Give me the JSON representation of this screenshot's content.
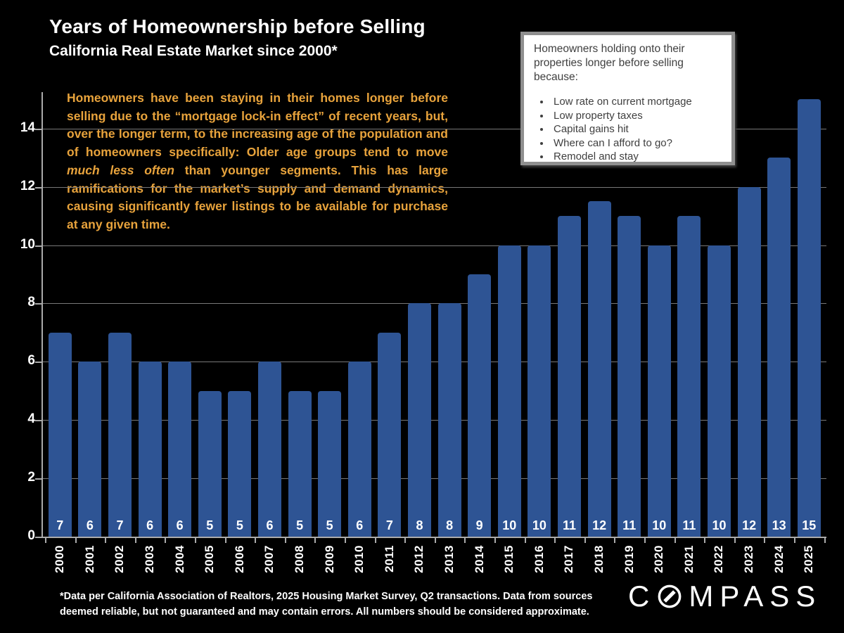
{
  "title": "Years of Homeownership before Selling",
  "subtitle": "California Real Estate Market since 2000*",
  "commentary": {
    "part1": "Homeowners have been staying in their homes longer before selling due to the “mortgage lock-in effect” of recent years, but, over the longer term, to the increasing age of the population and of homeowners specifically:  Older age groups tend to move ",
    "italic": "much less often",
    "part2": " than younger segments.  This has large ramifications for the market’s supply and demand dynamics, causing significantly fewer listings to be available for purchase at any given time."
  },
  "callout_box": {
    "heading": "Homeowners holding onto their properties longer before selling because:",
    "bullets": [
      "Low rate on current mortgage",
      "Low property taxes",
      "Capital gains hit",
      "Where can I afford to go?",
      "Remodel and stay"
    ]
  },
  "chart_data": {
    "type": "bar",
    "title": "Years of Homeownership before Selling",
    "xlabel": "",
    "ylabel": "",
    "categories": [
      "2000",
      "2001",
      "2002",
      "2003",
      "2004",
      "2005",
      "2006",
      "2007",
      "2008",
      "2009",
      "2010",
      "2011",
      "2012",
      "2013",
      "2014",
      "2015",
      "2016",
      "2017",
      "2018",
      "2019",
      "2020",
      "2021",
      "2022",
      "2023",
      "2024",
      "2025"
    ],
    "values": [
      7,
      6,
      7,
      6,
      6,
      5,
      5,
      6,
      5,
      5,
      6,
      7,
      8,
      8,
      9,
      10,
      10,
      11,
      11.5,
      11,
      10,
      11,
      10,
      12,
      13,
      15
    ],
    "bar_labels": [
      "7",
      "6",
      "7",
      "6",
      "6",
      "5",
      "5",
      "6",
      "5",
      "5",
      "6",
      "7",
      "8",
      "8",
      "9",
      "10",
      "10",
      "11",
      "12",
      "11",
      "10",
      "11",
      "10",
      "12",
      "13",
      "15"
    ],
    "yticks": [
      0,
      2,
      4,
      6,
      8,
      10,
      12,
      14
    ],
    "ylim": [
      0,
      15.25
    ],
    "grid": "on",
    "legend": "none",
    "colors": {
      "bar": "#2E5494",
      "grid": "#787878",
      "axis": "#ABABAB",
      "tick_label": "#FFFFFF",
      "background": "#000000",
      "commentary_text": "#E8A33C"
    }
  },
  "footer": {
    "disclaimer": "*Data per California Association of Realtors, 2025 Housing Market Survey, Q2 transactions. Data from sources deemed reliable, but not guaranteed and may contain errors. All numbers should be considered approximate.",
    "logo": "COMPASS"
  }
}
